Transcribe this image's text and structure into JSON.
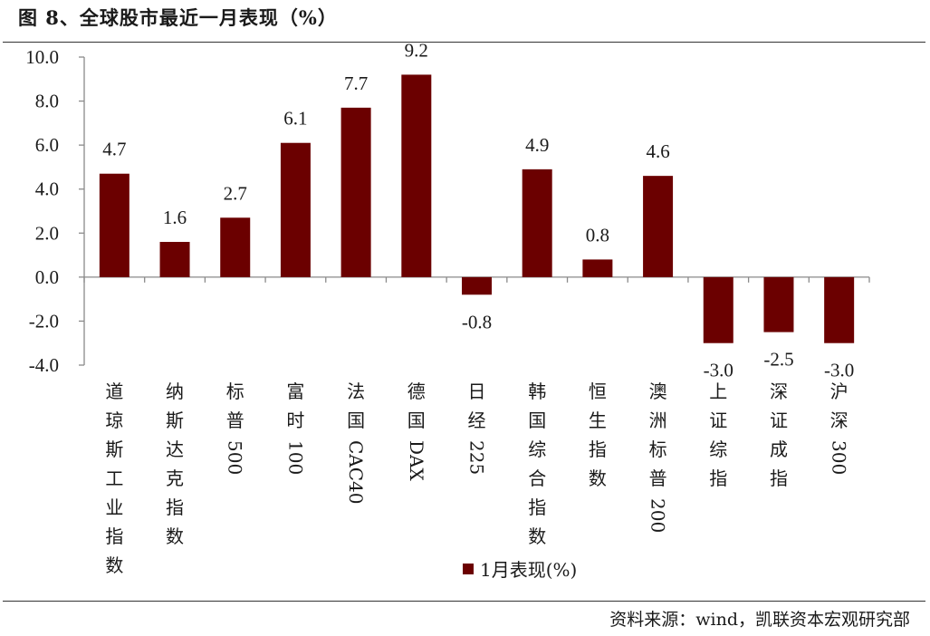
{
  "header": {
    "title": "图 8、全球股市最近一月表现（%）"
  },
  "footer": {
    "source": "资料来源：wind，凯联资本宏观研究部"
  },
  "chart_data": {
    "type": "bar",
    "title": "图 8、全球股市最近一月表现（%）",
    "categories": [
      "道琼斯工业指数",
      "纳斯达克指数",
      "标普500",
      "富时100",
      "法国CAC40",
      "德国DAX",
      "日经225",
      "韩国综合指数",
      "恒生指数",
      "澳洲标普200",
      "上证综指",
      "深证成指",
      "沪深300"
    ],
    "series": [
      {
        "name": "1月表现(%)",
        "values": [
          4.7,
          1.6,
          2.7,
          6.1,
          7.7,
          9.2,
          -0.8,
          4.9,
          0.8,
          4.6,
          -3.0,
          -2.5,
          -3.0
        ]
      }
    ],
    "data_labels": [
      "4.7",
      "1.6",
      "2.7",
      "6.1",
      "7.7",
      "9.2",
      "-0.8",
      "4.9",
      "0.8",
      "4.6",
      "-3.0",
      "-2.5",
      "-3.0"
    ],
    "y_ticks": [
      "10.0",
      "8.0",
      "6.0",
      "4.0",
      "2.0",
      "0.0",
      "-2.0",
      "-4.0"
    ],
    "ylim": [
      -4,
      10
    ],
    "grid": false,
    "legend_position": "bottom-center",
    "bar_color": "#6b0000"
  }
}
